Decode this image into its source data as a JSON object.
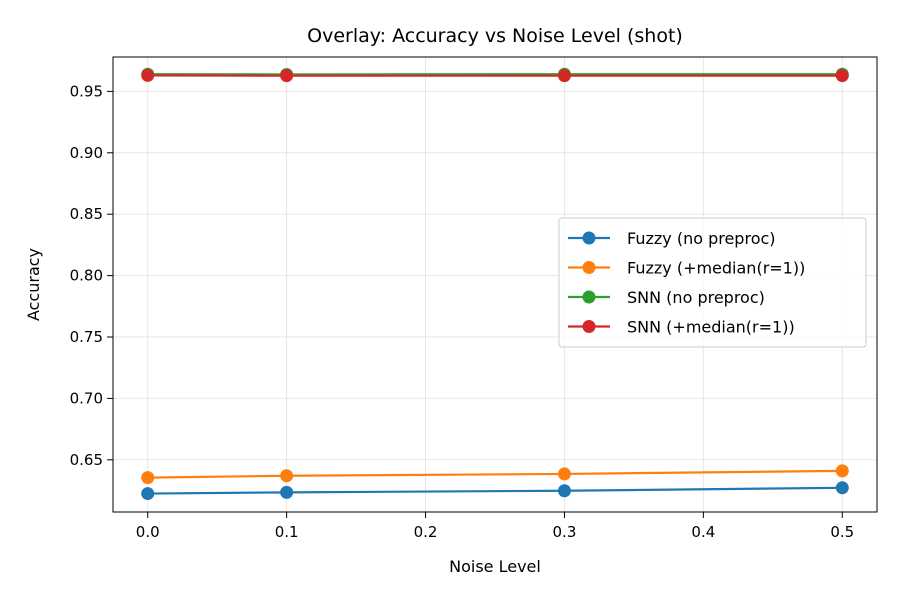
{
  "chart_data": {
    "type": "line",
    "title": "Overlay: Accuracy vs Noise Level (shot)",
    "xlabel": "Noise Level",
    "ylabel": "Accuracy",
    "xlim": [
      -0.025,
      0.525
    ],
    "ylim": [
      0.6075,
      0.978
    ],
    "xticks": [
      0.0,
      0.1,
      0.2,
      0.3,
      0.4,
      0.5
    ],
    "xtick_labels": [
      "0.0",
      "0.1",
      "0.2",
      "0.3",
      "0.4",
      "0.5"
    ],
    "yticks": [
      0.65,
      0.7,
      0.75,
      0.8,
      0.85,
      0.9,
      0.95
    ],
    "ytick_labels": [
      "0.65",
      "0.70",
      "0.75",
      "0.80",
      "0.85",
      "0.90",
      "0.95"
    ],
    "grid": true,
    "legend_position": "center-right",
    "x": [
      0.0,
      0.1,
      0.3,
      0.5
    ],
    "series": [
      {
        "name": "Fuzzy (no preproc)",
        "color": "#1f77b4",
        "values": [
          0.6225,
          0.6235,
          0.6248,
          0.6272
        ]
      },
      {
        "name": "Fuzzy (+median(r=1))",
        "color": "#ff7f0e",
        "values": [
          0.6355,
          0.637,
          0.6385,
          0.641
        ]
      },
      {
        "name": "SNN (no preproc)",
        "color": "#2ca02c",
        "values": [
          0.964,
          0.9638,
          0.964,
          0.964
        ]
      },
      {
        "name": "SNN (+median(r=1))",
        "color": "#d62728",
        "values": [
          0.963,
          0.9628,
          0.9628,
          0.9628
        ]
      }
    ]
  }
}
